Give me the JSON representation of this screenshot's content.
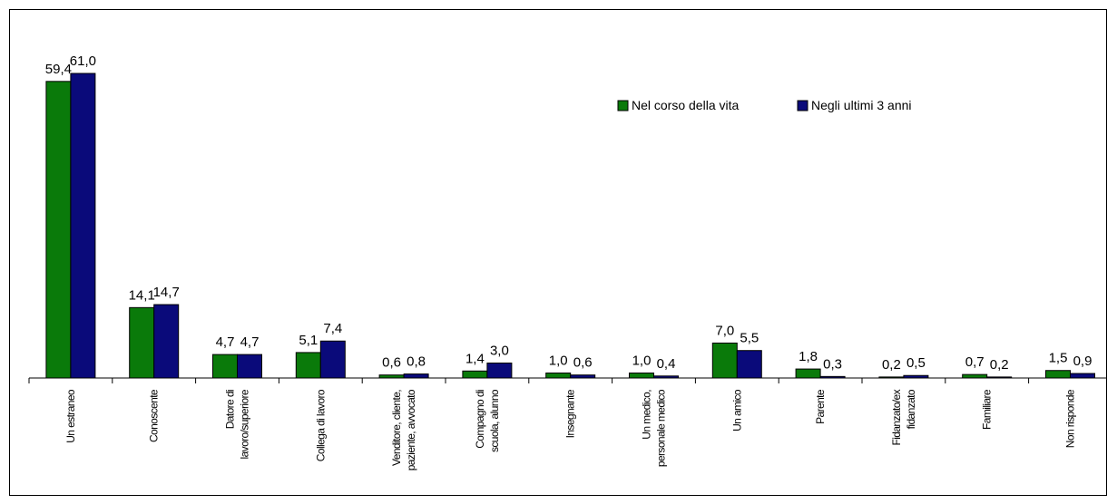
{
  "chart_data": {
    "type": "bar",
    "title": "",
    "xlabel": "",
    "ylabel": "",
    "ylim": [
      0,
      62
    ],
    "grid": false,
    "legend_position": "top-right",
    "categories": [
      [
        "Un estraneo"
      ],
      [
        "Conoscente"
      ],
      [
        "Datore di",
        "lavoro/superiore"
      ],
      [
        "Collega di lavoro"
      ],
      [
        "Venditore, cliente,",
        "paziente, avvocato"
      ],
      [
        "Compagno di",
        "scuola, alunno"
      ],
      [
        "Insegnante"
      ],
      [
        "Un medico,",
        "personale medico"
      ],
      [
        "Un amico"
      ],
      [
        "Parente"
      ],
      [
        "Fidanzato/ex",
        "fidanzato"
      ],
      [
        "Familiare"
      ],
      [
        "Non risponde"
      ]
    ],
    "series": [
      {
        "name": "Nel corso della vita",
        "color": "#0a7a0a",
        "values": [
          59.4,
          14.1,
          4.7,
          5.1,
          0.6,
          1.4,
          1.0,
          1.0,
          7.0,
          1.8,
          0.2,
          0.7,
          1.5
        ],
        "labels": [
          "59,4",
          "14,1",
          "4,7",
          "5,1",
          "0,6",
          "1,4",
          "1,0",
          "1,0",
          "7,0",
          "1,8",
          "0,2",
          "0,7",
          "1,5"
        ]
      },
      {
        "name": "Negli ultimi 3 anni",
        "color": "#0a0a7a",
        "values": [
          61.0,
          14.7,
          4.7,
          7.4,
          0.8,
          3.0,
          0.6,
          0.4,
          5.5,
          0.3,
          0.5,
          0.2,
          0.9
        ],
        "labels": [
          "61,0",
          "14,7",
          "4,7",
          "7,4",
          "0,8",
          "3,0",
          "0,6",
          "0,4",
          "5,5",
          "0,3",
          "0,5",
          "0,2",
          "0,9"
        ]
      }
    ]
  }
}
